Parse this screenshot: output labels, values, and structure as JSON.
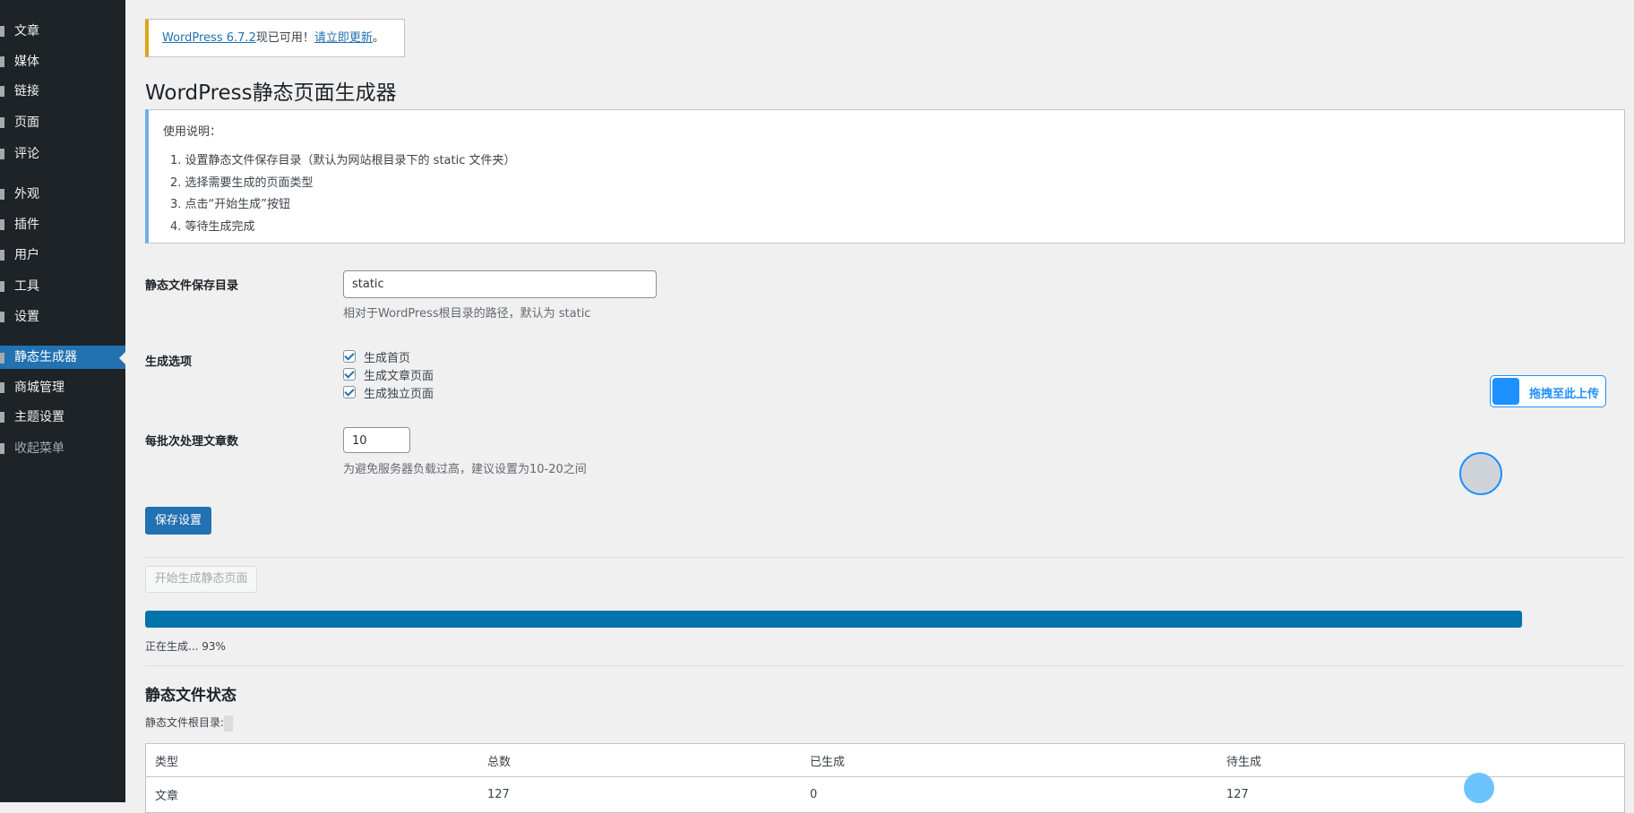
{
  "sidebar": {
    "items": [
      "文章",
      "媒体",
      "链接",
      "页面",
      "评论",
      "外观",
      "插件",
      "用户",
      "工具",
      "设置",
      "静态生成器",
      "商城管理",
      "主题设置",
      "收起菜单"
    ]
  },
  "notice": {
    "link": "WordPress 6.7.2",
    "text": "现已可用！",
    "action": "请立即更新",
    "end": "。"
  },
  "header": {
    "title": "WordPress静态页面生成器"
  },
  "instructions": {
    "heading": "使用说明：",
    "steps": [
      "1. 设置静态文件保存目录（默认为网站根目录下的 static 文件夹）",
      "2. 选择需要生成的页面类型",
      "3. 点击“开始生成”按钮",
      "4. 等待生成完成"
    ]
  },
  "form": {
    "dir_label": "静态文件保存目录",
    "dir_value": "static",
    "dir_hint": "相对于WordPress根目录的路径，默认为 static",
    "options_label": "生成选项",
    "options": [
      "生成首页",
      "生成文章页面",
      "生成独立页面"
    ],
    "batch_label": "每批次处理文章数",
    "batch_value": "10",
    "batch_hint": "为避免服务器负载过高，建议设置为10-20之间",
    "save": "保存设置"
  },
  "generate": {
    "button": "开始生成静态页面",
    "progress_text": "正在生成... 93%"
  },
  "status": {
    "heading": "静态文件状态",
    "root_label": "静态文件根目录:"
  },
  "table": {
    "headers": [
      "类型",
      "总数",
      "已生成",
      "待生成"
    ],
    "rows": [
      [
        "文章",
        127,
        0,
        127
      ]
    ]
  },
  "widget": {
    "upload": "拖拽至此上传"
  }
}
